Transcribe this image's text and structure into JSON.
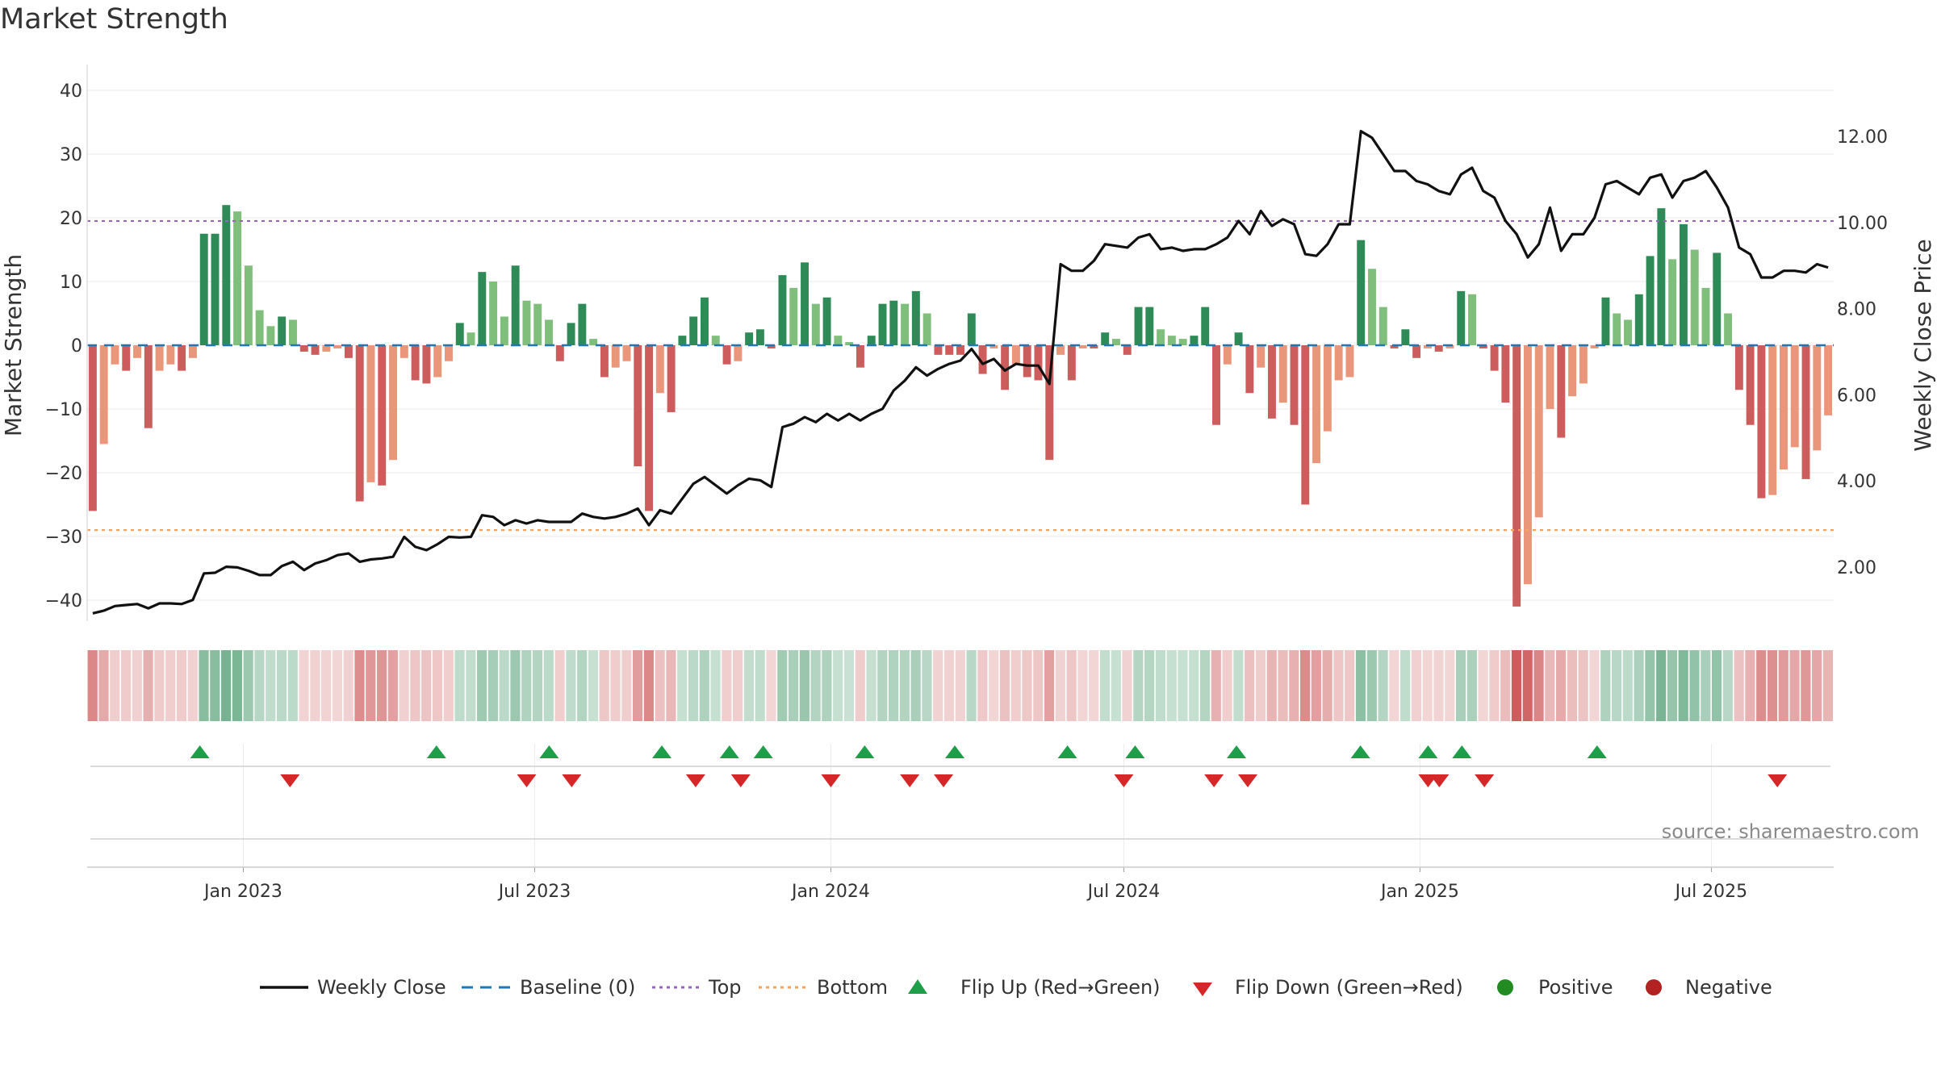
{
  "chart_data": {
    "type": "bar",
    "title": "Market Strength",
    "ylabel": "Market Strength",
    "y2label": "Weekly Close Price",
    "ylim": [
      -43,
      43
    ],
    "y2lim": [
      0.8,
      13.2
    ],
    "yticks": [
      40,
      30,
      20,
      10,
      0,
      -10,
      -20,
      -30,
      -40
    ],
    "ytick_labels": [
      "40",
      "30",
      "20",
      "10",
      "0",
      "−10",
      "−20",
      "−30",
      "−40"
    ],
    "y2ticks": [
      12,
      10,
      8,
      6,
      4,
      2
    ],
    "y2tick_labels": [
      "12.00",
      "10.00",
      "8.00",
      "6.00",
      "4.00",
      "2.00"
    ],
    "x_start": "2022-09-26",
    "x_end": "2025-09-15",
    "xticks": [
      "2023-01-01",
      "2023-07-01",
      "2024-01-01",
      "2024-07-01",
      "2025-01-01",
      "2025-07-01"
    ],
    "xtick_labels": [
      "Jan 2023",
      "Jul 2023",
      "Jan 2024",
      "Jul 2024",
      "Jan 2025",
      "Jul 2025"
    ],
    "top_threshold": 19.5,
    "bottom_threshold": -29,
    "baseline": 0,
    "grid": true,
    "legend_position": "bottom",
    "source_note": "source: sharemaestro.com",
    "colors": {
      "strong_green": "#2e8b57",
      "light_green": "#7fbf7b",
      "strong_red": "#cd5c5c",
      "light_red": "#e9967a",
      "price_line": "#111111",
      "baseline": "#1f77b4",
      "top": "#9467bd",
      "bottom": "#f4a460",
      "flip_up": "#1f9e4a",
      "flip_down": "#d62728",
      "positive": "#228b22",
      "negative": "#b22222"
    },
    "series": [
      {
        "name": "Market Strength",
        "values": [
          -26,
          -15.5,
          -3,
          -4,
          -2,
          -13,
          -4,
          -3,
          -4,
          -2,
          17.5,
          17.5,
          22,
          21,
          12.5,
          5.5,
          3,
          4.5,
          4,
          -1,
          -1.5,
          -1,
          -0.5,
          -2,
          -24.5,
          -21.5,
          -22,
          -18,
          -2,
          -5.5,
          -6,
          -5,
          -2.5,
          3.5,
          2,
          11.5,
          10,
          4.5,
          12.5,
          7,
          6.5,
          4,
          -2.5,
          3.5,
          6.5,
          1,
          -5,
          -3.5,
          -2.5,
          -19,
          -26,
          -7.5,
          -10.5,
          1.5,
          4.5,
          7.5,
          1.5,
          -3,
          -2.5,
          2,
          2.5,
          -0.5,
          11,
          9,
          13,
          6.5,
          7.5,
          1.5,
          0.5,
          -3.5,
          1.5,
          6.5,
          7,
          6.5,
          8.5,
          5,
          -1.5,
          -1.5,
          -1.5,
          5,
          -4.5,
          -0.5,
          -7,
          -3,
          -5,
          -5.5,
          -18,
          -1.5,
          -5.5,
          -0.5,
          -0.5,
          2,
          1,
          -1.5,
          6,
          6,
          2.5,
          1.5,
          1,
          1.5,
          6,
          -12.5,
          -3,
          2,
          -7.5,
          -3.5,
          -11.5,
          -9,
          -12.5,
          -25,
          -18.5,
          -13.5,
          -5.5,
          -5,
          16.5,
          12,
          6,
          -0.5,
          2.5,
          -2,
          -0.5,
          -1,
          -0.5,
          8.5,
          8,
          -0.5,
          -4,
          -9,
          -41,
          -37.5,
          -27,
          -10,
          -14.5,
          -8,
          -6,
          -0.5,
          7.5,
          5,
          4,
          8,
          14,
          21.5,
          13.5,
          19,
          15,
          9,
          14.5,
          5,
          -7,
          -12.5,
          -24,
          -23.5,
          -19.5,
          -16,
          -21,
          -16.5,
          -11
        ]
      },
      {
        "name": "Weekly Close",
        "values": [
          1.2,
          1.28,
          1.42,
          1.45,
          1.48,
          1.35,
          1.5,
          1.5,
          1.48,
          1.6,
          2.4,
          2.42,
          2.6,
          2.58,
          2.48,
          2.35,
          2.35,
          2.62,
          2.75,
          2.5,
          2.7,
          2.8,
          2.95,
          3.0,
          2.75,
          2.82,
          2.85,
          2.9,
          3.5,
          3.2,
          3.1,
          3.28,
          3.5,
          3.48,
          3.5,
          4.15,
          4.1,
          3.85,
          4.0,
          3.9,
          4.0,
          3.95,
          3.95,
          3.95,
          4.2,
          4.1,
          4.05,
          4.1,
          4.2,
          4.35,
          3.85,
          4.3,
          4.2,
          4.65,
          5.1,
          5.3,
          5.05,
          4.8,
          5.05,
          5.25,
          5.2,
          5.0,
          6.8,
          6.9,
          7.1,
          6.95,
          7.2,
          7.0,
          7.2,
          7.0,
          7.2,
          7.35,
          7.9,
          8.2,
          8.6,
          8.35,
          8.55,
          8.7,
          8.8,
          9.15,
          8.7,
          8.85,
          8.5,
          8.7,
          8.65,
          8.65,
          8.1,
          11.7,
          11.5,
          11.5,
          11.8,
          12.3,
          12.25,
          12.2,
          12.5,
          12.6,
          12.15,
          12.2,
          12.1,
          12.15,
          12.15,
          12.3,
          12.5,
          13.0,
          12.6,
          13.3,
          12.85,
          13.05,
          12.9,
          12.0,
          11.95,
          12.3,
          12.9,
          12.9,
          15.7,
          15.5,
          15.0,
          14.5,
          14.5,
          14.2,
          14.1,
          13.9,
          13.8,
          14.4,
          14.6,
          13.9,
          13.7,
          13.0,
          12.6,
          11.9,
          12.3,
          13.4,
          12.1,
          12.6,
          12.6,
          13.1,
          14.1,
          14.2,
          14.0,
          13.8,
          14.3,
          14.4,
          13.7,
          14.2,
          14.3,
          14.5,
          14.0,
          13.4,
          12.2,
          12.0,
          11.3,
          11.3,
          11.5,
          11.5,
          11.45,
          11.7,
          11.6
        ],
        "y2_scale": 0.772
      }
    ],
    "flip_up_dates": [
      "2022-12-05",
      "2023-05-01",
      "2023-07-10",
      "2023-09-18",
      "2023-10-30",
      "2023-11-20",
      "2024-01-22",
      "2024-03-18",
      "2024-05-27",
      "2024-07-08",
      "2024-09-09",
      "2024-11-25",
      "2025-01-06",
      "2025-01-27",
      "2025-04-21"
    ],
    "flip_down_dates": [
      "2023-01-30",
      "2023-06-26",
      "2023-07-24",
      "2023-10-09",
      "2023-11-06",
      "2024-01-01",
      "2024-02-19",
      "2024-03-11",
      "2024-07-01",
      "2024-08-26",
      "2024-09-16",
      "2025-01-06",
      "2025-01-13",
      "2025-02-10",
      "2025-08-11"
    ]
  },
  "legend": {
    "weekly_close": "Weekly Close",
    "baseline": "Baseline (0)",
    "top": "Top",
    "bottom": "Bottom",
    "flip_up": "Flip Up (Red→Green)",
    "flip_down": "Flip Down (Green→Red)",
    "positive": "Positive",
    "negative": "Negative"
  }
}
